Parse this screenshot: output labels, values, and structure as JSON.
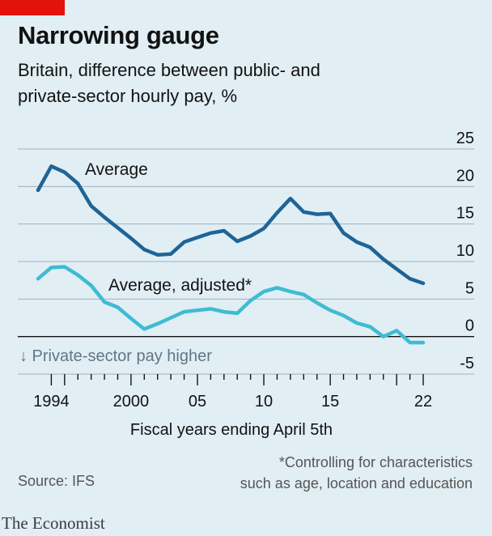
{
  "title": "Narrowing gauge",
  "subtitle": "Britain, difference between public- and private-sector hourly pay, %",
  "chart_data": {
    "type": "line",
    "xlabel": "Fiscal years ending April 5th",
    "ylabel": "",
    "xlim": [
      1993,
      2025
    ],
    "ylim": [
      -5,
      25
    ],
    "x_ticks": [
      1994,
      2000,
      2005,
      2010,
      2015,
      2022
    ],
    "x_tick_labels": [
      "1994",
      "2000",
      "05",
      "10",
      "15",
      "22"
    ],
    "y_ticks": [
      25,
      20,
      15,
      10,
      5,
      0,
      -5
    ],
    "y_tick_labels": [
      "25",
      "20",
      "15",
      "10",
      "5",
      "0",
      "-5"
    ],
    "grid": true,
    "annotation": "↓ Private-sector pay higher",
    "series": [
      {
        "name": "Average",
        "color": "#1f6496",
        "x": [
          1993,
          1994,
          1995,
          1996,
          1997,
          1998,
          1999,
          2000,
          2001,
          2002,
          2003,
          2004,
          2005,
          2006,
          2007,
          2008,
          2009,
          2010,
          2011,
          2012,
          2013,
          2014,
          2015,
          2016,
          2017,
          2018,
          2019,
          2020,
          2021,
          2022
        ],
        "values": [
          19.5,
          22.7,
          21.9,
          20.4,
          17.4,
          15.9,
          14.5,
          13.1,
          11.6,
          10.9,
          11.0,
          12.6,
          13.2,
          13.8,
          14.1,
          12.7,
          13.4,
          14.4,
          16.5,
          18.4,
          16.6,
          16.3,
          16.4,
          13.8,
          12.6,
          11.9,
          10.3,
          9.0,
          7.7,
          7.1
        ]
      },
      {
        "name": "Average, adjusted*",
        "color": "#3ebcd2",
        "x": [
          1993,
          1994,
          1995,
          1996,
          1997,
          1998,
          1999,
          2000,
          2001,
          2002,
          2003,
          2004,
          2005,
          2006,
          2007,
          2008,
          2009,
          2010,
          2011,
          2012,
          2013,
          2014,
          2015,
          2016,
          2017,
          2018,
          2019,
          2020,
          2021,
          2022
        ],
        "values": [
          7.7,
          9.2,
          9.3,
          8.2,
          6.8,
          4.6,
          3.9,
          2.4,
          1.0,
          1.7,
          2.5,
          3.3,
          3.5,
          3.7,
          3.3,
          3.1,
          4.8,
          6.0,
          6.5,
          6.0,
          5.6,
          4.5,
          3.5,
          2.8,
          1.8,
          1.3,
          0.0,
          0.8,
          -0.8,
          -0.8
        ]
      }
    ]
  },
  "footnote_line1": "*Controlling for characteristics",
  "footnote_line2": "such as age, location and education",
  "source": "Source: IFS",
  "brand": "The Economist"
}
